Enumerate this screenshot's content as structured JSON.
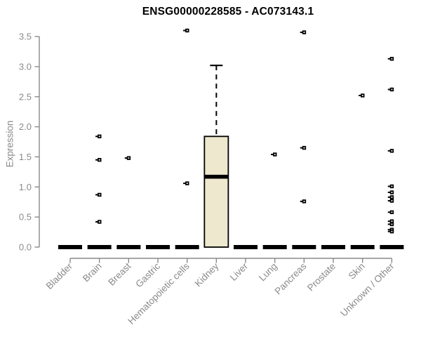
{
  "figure": {
    "background": "#ffffff"
  },
  "chart_data": {
    "type": "boxplot",
    "title": "ENSG00000228585 - AC073143.1",
    "ylabel": "Expression",
    "xlabel": "",
    "ylim": [
      0,
      3.5
    ],
    "ytick_values": [
      0,
      0.5,
      1,
      1.5,
      2,
      2.5,
      3,
      3.5
    ],
    "ytick_labels": [
      "0.0",
      "0.5",
      "1.0",
      "1.5",
      "2.0",
      "2.5",
      "3.0",
      "3.5"
    ],
    "grid": false,
    "x_label_rotation_deg": 45,
    "colors": {
      "box_fill": "#ede8ce",
      "box_border": "#000000",
      "median": "#000000",
      "outlier": "#000000",
      "axis": "#8a8a8a",
      "tick_label": "#8a8a8a",
      "title": "#000000",
      "background": "#ffffff"
    },
    "categories": [
      "Bladder",
      "Brain",
      "Breast",
      "Gastric",
      "Hematopoietic cells",
      "Kidney",
      "Liver",
      "Lung",
      "Pancreas",
      "Prostate",
      "Skin",
      "Unknown / Other"
    ],
    "boxes": [
      {
        "category": "Bladder",
        "q1": 0,
        "median": 0,
        "q3": 0,
        "whisker_low": 0,
        "whisker_high": 0,
        "outliers": []
      },
      {
        "category": "Brain",
        "q1": 0,
        "median": 0,
        "q3": 0,
        "whisker_low": 0,
        "whisker_high": 0,
        "outliers": [
          1.84,
          1.45,
          0.87,
          0.42
        ]
      },
      {
        "category": "Breast",
        "q1": 0,
        "median": 0,
        "q3": 0,
        "whisker_low": 0,
        "whisker_high": 0,
        "outliers": [
          1.48
        ]
      },
      {
        "category": "Gastric",
        "q1": 0,
        "median": 0,
        "q3": 0,
        "whisker_low": 0,
        "whisker_high": 0,
        "outliers": []
      },
      {
        "category": "Hematopoietic cells",
        "q1": 0,
        "median": 0,
        "q3": 0,
        "whisker_low": 0,
        "whisker_high": 0,
        "outliers": [
          3.6,
          1.06
        ]
      },
      {
        "category": "Kidney",
        "q1": 0,
        "median": 1.17,
        "q3": 1.84,
        "whisker_low": 0,
        "whisker_high": 3.02,
        "outliers": []
      },
      {
        "category": "Liver",
        "q1": 0,
        "median": 0,
        "q3": 0,
        "whisker_low": 0,
        "whisker_high": 0,
        "outliers": []
      },
      {
        "category": "Lung",
        "q1": 0,
        "median": 0,
        "q3": 0,
        "whisker_low": 0,
        "whisker_high": 0,
        "outliers": [
          1.54
        ]
      },
      {
        "category": "Pancreas",
        "q1": 0,
        "median": 0,
        "q3": 0,
        "whisker_low": 0,
        "whisker_high": 0,
        "outliers": [
          3.57,
          1.65,
          0.76
        ]
      },
      {
        "category": "Prostate",
        "q1": 0,
        "median": 0,
        "q3": 0,
        "whisker_low": 0,
        "whisker_high": 0,
        "outliers": []
      },
      {
        "category": "Skin",
        "q1": 0,
        "median": 0,
        "q3": 0,
        "whisker_low": 0,
        "whisker_high": 0,
        "outliers": [
          2.52
        ]
      },
      {
        "category": "Unknown / Other",
        "q1": 0,
        "median": 0,
        "q3": 0,
        "whisker_low": 0,
        "whisker_high": 0,
        "outliers": [
          3.13,
          2.62,
          1.6,
          1.01,
          0.91,
          0.83,
          0.77,
          0.58,
          0.43,
          0.38,
          0.29,
          0.26
        ]
      }
    ]
  }
}
